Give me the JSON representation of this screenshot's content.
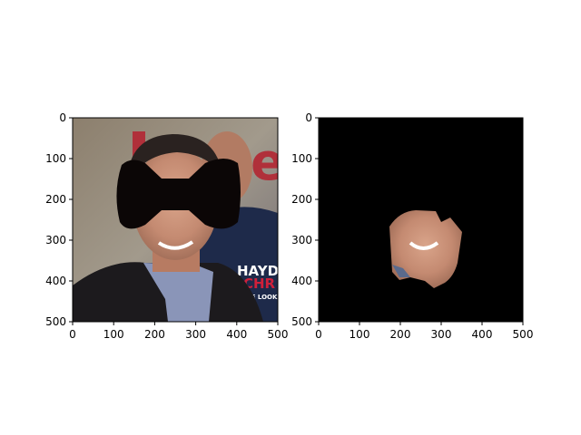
{
  "figure": {
    "panels": [
      {
        "id": "left",
        "description_visible_text": {
          "sign_red_letters": "e",
          "shirt_text_line1": "HAYD",
          "shirt_text_line2": "CHR",
          "shirt_text_line3": "THE LOOK"
        },
        "x_ticks": [
          "0",
          "100",
          "200",
          "300",
          "400",
          "500"
        ],
        "y_ticks": [
          "0",
          "100",
          "200",
          "300",
          "400",
          "500"
        ]
      },
      {
        "id": "right",
        "x_ticks": [
          "0",
          "100",
          "200",
          "300",
          "400",
          "500"
        ],
        "y_ticks": [
          "0",
          "100",
          "200",
          "300",
          "400",
          "500"
        ]
      }
    ]
  }
}
